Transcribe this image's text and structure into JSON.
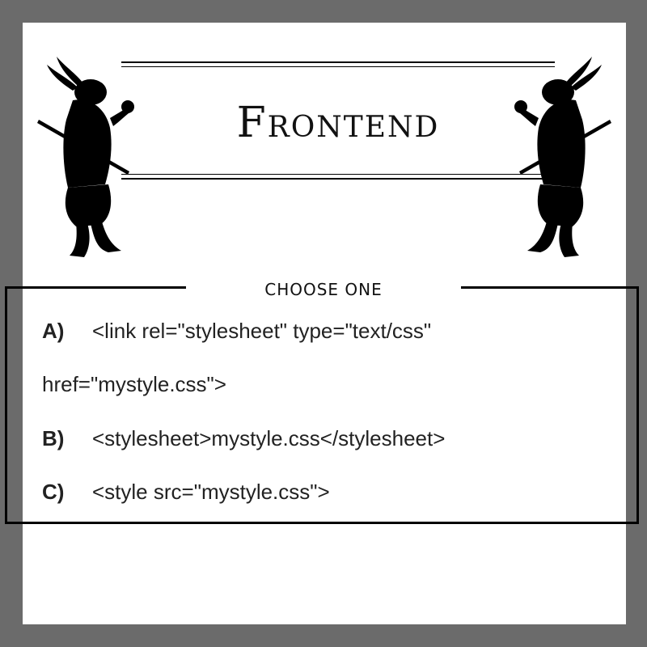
{
  "banner": {
    "title": "Frontend"
  },
  "question": {
    "label": "CHOOSE ONE",
    "options": [
      {
        "letter": "A)",
        "line1": "<link rel=\"stylesheet\" type=\"text/css\"",
        "line2": "href=\"mystyle.css\">"
      },
      {
        "letter": "B)",
        "line1": "<stylesheet>mystyle.css</stylesheet>"
      },
      {
        "letter": "C)",
        "line1": "<style src=\"mystyle.css\">"
      }
    ]
  },
  "icons": {
    "left": "rabbit-knight-icon",
    "right": "rabbit-knight-icon"
  },
  "colors": {
    "frame": "#6b6b6b",
    "card": "#ffffff",
    "ink": "#000000"
  }
}
